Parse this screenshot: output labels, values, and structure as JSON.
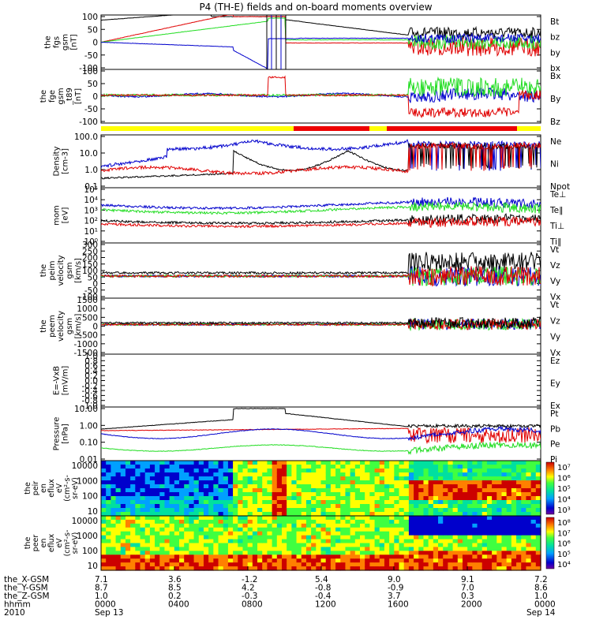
{
  "title": "P4 (TH-E) fields and on-board moments overview",
  "colors": {
    "black": "#000000",
    "red": "#e00000",
    "green": "#22dd22",
    "blue": "#0000cc",
    "bar_yellow": "#ffff00",
    "bar_red": "#ee0000"
  },
  "chart_data": {
    "type": "line",
    "panels": [
      {
        "id": "fgs",
        "ylabel": [
          "the",
          "fgs",
          "gsm",
          "[nT]"
        ],
        "yticks": [
          "100",
          "50",
          "0",
          "-50",
          "-100"
        ],
        "ylim": [
          -100,
          100
        ],
        "series": [
          {
            "name": "Bt",
            "color": "#000000"
          },
          {
            "name": "bz",
            "color": "#e00000"
          },
          {
            "name": "by",
            "color": "#22dd22"
          },
          {
            "name": "bx",
            "color": "#0000cc"
          }
        ]
      },
      {
        "id": "fge",
        "ylabel": [
          "the",
          "fge",
          "gsm",
          "_t89",
          "[nT]"
        ],
        "yticks": [
          "100",
          "50",
          "0",
          "-50",
          "-100"
        ],
        "ylim": [
          -120,
          100
        ],
        "series": [
          {
            "name": "Bx",
            "color": "#0000cc"
          },
          {
            "name": "By",
            "color": "#22dd22"
          },
          {
            "name": "Bz",
            "color": "#e00000"
          }
        ]
      },
      {
        "id": "density",
        "ylabel": [
          "Density",
          "[cm-3]"
        ],
        "yticks": [
          "100.0",
          "10.0",
          "1.0",
          "0.1"
        ],
        "ylim": [
          0.05,
          250
        ],
        "log": true,
        "series": [
          {
            "name": "Ne",
            "color": "#e00000"
          },
          {
            "name": "Ni",
            "color": "#000000"
          },
          {
            "name": "Npot",
            "color": "#0000cc"
          }
        ]
      },
      {
        "id": "temp",
        "ylabel": [
          "mom",
          "[eV]"
        ],
        "yticks": [
          "10⁵",
          "10⁴",
          "10³",
          "10²",
          "10¹",
          "10⁰"
        ],
        "ylim": [
          1,
          100000
        ],
        "log": true,
        "series": [
          {
            "name": "Te⊥",
            "color": "#e00000"
          },
          {
            "name": "Te∥",
            "color": "#000000"
          },
          {
            "name": "Ti⊥",
            "color": "#0000cc"
          },
          {
            "name": "Ti∥",
            "color": "#22dd22"
          }
        ]
      },
      {
        "id": "peim",
        "ylabel": [
          "the",
          "peim",
          "velocity",
          "gsm",
          "[km/s]"
        ],
        "yticks": [
          "300",
          "250",
          "200",
          "150",
          "100",
          "50",
          "0",
          "-50",
          "-100"
        ],
        "ylim": [
          -100,
          300
        ],
        "series": [
          {
            "name": "Vt",
            "color": "#000000"
          },
          {
            "name": "Vz",
            "color": "#e00000"
          },
          {
            "name": "Vy",
            "color": "#22dd22"
          },
          {
            "name": "Vx",
            "color": "#0000cc"
          }
        ]
      },
      {
        "id": "peem",
        "ylabel": [
          "the",
          "peem",
          "velocity",
          "gsm",
          "[km/s]"
        ],
        "yticks": [
          "1500",
          "1000",
          "500",
          "0",
          "-500",
          "-1000",
          "-1500"
        ],
        "ylim": [
          -1500,
          1500
        ],
        "series": [
          {
            "name": "Vt",
            "color": "#000000"
          },
          {
            "name": "Vz",
            "color": "#e00000"
          },
          {
            "name": "Vy",
            "color": "#22dd22"
          },
          {
            "name": "Vx",
            "color": "#0000cc"
          }
        ]
      },
      {
        "id": "efield",
        "ylabel": [
          "E=-VxB",
          "[mV/m]"
        ],
        "yticks": [
          "1.0",
          "0.8",
          "0.6",
          "0.4",
          "0.2",
          "0.0",
          "-0.2",
          "-0.4",
          "-0.6",
          "-0.8",
          "-1.0"
        ],
        "ylim": [
          -1,
          1
        ],
        "series": [
          {
            "name": "Ez",
            "color": "#e00000"
          },
          {
            "name": "Ey",
            "color": "#22dd22"
          },
          {
            "name": "Ex",
            "color": "#0000cc"
          }
        ]
      },
      {
        "id": "pressure",
        "ylabel": [
          "Pressure",
          "[nPa]"
        ],
        "yticks": [
          "10.00",
          "1.00",
          "0.10",
          "0.01"
        ],
        "ylim": [
          0.005,
          20
        ],
        "log": true,
        "series": [
          {
            "name": "Pt",
            "color": "#000000"
          },
          {
            "name": "Pb",
            "color": "#e00000"
          },
          {
            "name": "Pe",
            "color": "#22dd22"
          },
          {
            "name": "Pi",
            "color": "#0000cc"
          }
        ]
      }
    ],
    "spectrograms": [
      {
        "id": "peir",
        "ylabel": [
          "the",
          "peir",
          "en",
          "eflux",
          "eV",
          "(cm²-s-",
          "sr-eV)"
        ],
        "yticks": [
          "10000",
          "1000",
          "100",
          "10"
        ],
        "colorbar_ticks": [
          "10⁷",
          "10⁶",
          "10⁵",
          "10⁴",
          "10³"
        ]
      },
      {
        "id": "peer",
        "ylabel": [
          "the",
          "peer",
          "en",
          "eflux",
          "eV",
          "(cm²-s-",
          "sr-eV)"
        ],
        "yticks": [
          "10000",
          "1000",
          "100",
          "10"
        ],
        "colorbar_ticks": [
          "10⁸",
          "10⁷",
          "10⁶",
          "10⁵",
          "10⁴"
        ]
      }
    ],
    "time_axis": {
      "rows": [
        {
          "label": "the_X-GSM",
          "values": [
            "7.1",
            "3.6",
            "-1.2",
            "5.4",
            "9.0",
            "9.1",
            "7.2"
          ]
        },
        {
          "label": "the_Y-GSM",
          "values": [
            "8.7",
            "8.5",
            "4.2",
            "-0.8",
            "-0.9",
            "7.0",
            "8.6"
          ]
        },
        {
          "label": "the_Z-GSM",
          "values": [
            "1.0",
            "0.2",
            "-0.3",
            "-0.4",
            "3.7",
            "0.3",
            "1.0"
          ]
        },
        {
          "label": "hhmm",
          "values": [
            "0000",
            "0400",
            "0800",
            "1200",
            "1600",
            "2000",
            "0000"
          ]
        }
      ],
      "year": "2010",
      "start_date": "Sep 13",
      "end_date": "Sep 14"
    }
  }
}
